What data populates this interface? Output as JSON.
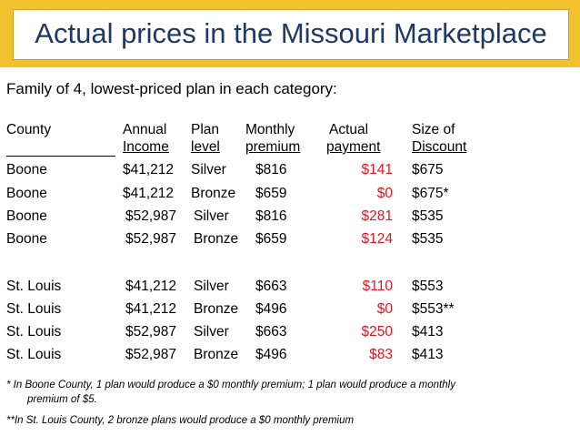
{
  "title": "Actual prices in the Missouri Marketplace",
  "subtitle": "Family of 4, lowest-priced plan in each category:",
  "headers": {
    "county": [
      "",
      "County"
    ],
    "income": [
      "Annual",
      "Income"
    ],
    "plan": [
      "Plan",
      "level"
    ],
    "premium": [
      "Monthly",
      "premium"
    ],
    "payment": [
      "Actual",
      "payment"
    ],
    "discount": [
      "Size of",
      "Discount"
    ]
  },
  "rows": [
    {
      "county": "Boone",
      "income": "$41,212",
      "plan": "Silver",
      "premium": "$816",
      "payment": "$141",
      "discount": "$675"
    },
    {
      "county": "Boone",
      "income": "$41,212",
      "plan": "Bronze",
      "premium": "$659",
      "payment": "$0",
      "discount": "$675*"
    },
    {
      "county": "Boone",
      "income": "$52,987",
      "plan": "Silver",
      "premium": "$816",
      "payment": "$281",
      "discount": "$535"
    },
    {
      "county": "Boone",
      "income": "$52,987",
      "plan": "Bronze",
      "premium": "$659",
      "payment": "$124",
      "discount": "$535"
    },
    {
      "county": "St. Louis",
      "income": "$41,212",
      "plan": "Silver",
      "premium": "$663",
      "payment": "$110",
      "discount": "$553"
    },
    {
      "county": "St. Louis",
      "income": "$41,212",
      "plan": "Bronze",
      "premium": "$496",
      "payment": "$0",
      "discount": "$553**"
    },
    {
      "county": "St. Louis",
      "income": "$52,987",
      "plan": "Silver",
      "premium": "$663",
      "payment": "$250",
      "discount": "$413"
    },
    {
      "county": "St. Louis",
      "income": "$52,987",
      "plan": "Bronze",
      "premium": "$496",
      "payment": "$83",
      "discount": "$413"
    }
  ],
  "footnotes": [
    "* In Boone County, 1 plan would produce a $0 monthly premium; 1 plan would produce a monthly",
    "premium of $5.",
    "**In St. Louis County, 2 bronze plans would produce a $0 monthly premium"
  ],
  "colors": {
    "accent_bar": "#f2c12e",
    "title_text": "#1f3864",
    "payment_text": "#e8131f"
  }
}
